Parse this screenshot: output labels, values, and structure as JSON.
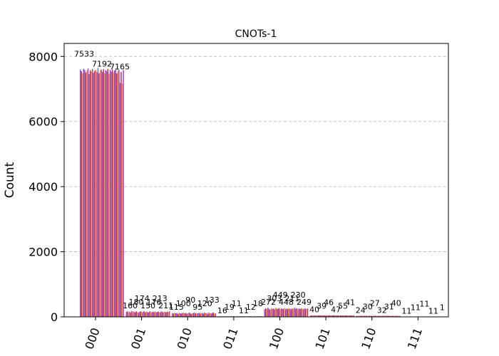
{
  "chart_data": {
    "type": "bar",
    "title": "CNOTs-1",
    "xlabel": "",
    "ylabel": "Count",
    "ylim": [
      0,
      8400
    ],
    "yticks": [
      0,
      2000,
      4000,
      6000,
      8000
    ],
    "grid": true,
    "categories": [
      "000",
      "001",
      "010",
      "011",
      "100",
      "101",
      "110",
      "111"
    ],
    "series_colors": [
      "#6a5acd",
      "#dc143c",
      "#ff8c00",
      "#9932cc"
    ],
    "series_count": 40,
    "group_values": [
      [
        7600,
        7550,
        7480,
        7620,
        7590,
        7510,
        7570,
        7630,
        7460,
        7580,
        7540,
        7610,
        7500,
        7560,
        7590,
        7520,
        7650,
        7480,
        7570,
        7600,
        7530,
        7610,
        7490,
        7580,
        7550,
        7620,
        7470,
        7590,
        7540,
        7600,
        7510,
        7570,
        7630,
        7480,
        7560,
        7590,
        7192,
        7520,
        7165,
        7580
      ],
      [
        150,
        170,
        140,
        160,
        130,
        180,
        150,
        160,
        140,
        170,
        150,
        130,
        160,
        170,
        140,
        150,
        180,
        140,
        160,
        150,
        130,
        170,
        150,
        140,
        160,
        150,
        170,
        140,
        150,
        160,
        130,
        150,
        170,
        140,
        160,
        150,
        140,
        160,
        150,
        170
      ],
      [
        120,
        100,
        130,
        110,
        120,
        90,
        130,
        110,
        100,
        120,
        130,
        110,
        120,
        100,
        110,
        130,
        120,
        90,
        110,
        120,
        130,
        100,
        120,
        110,
        130,
        100,
        110,
        120,
        100,
        130,
        110,
        120,
        90,
        130,
        110,
        100,
        120,
        130,
        110,
        100
      ],
      [
        15,
        20,
        12,
        18,
        14,
        16,
        20,
        12,
        18,
        15,
        14,
        19,
        13,
        17,
        20,
        15,
        12,
        18,
        16,
        14,
        20,
        13,
        17,
        15,
        19,
        12,
        16,
        18,
        14,
        20,
        15,
        13,
        17,
        19,
        12,
        16,
        18,
        14,
        15,
        20
      ],
      [
        230,
        260,
        240,
        280,
        250,
        220,
        270,
        240,
        260,
        230,
        280,
        250,
        240,
        270,
        230,
        260,
        250,
        240,
        280,
        230,
        260,
        240,
        270,
        250,
        230,
        260,
        240,
        280,
        250,
        270,
        220,
        260,
        240,
        250,
        270,
        230,
        260,
        250,
        240,
        260
      ],
      [
        45,
        40,
        50,
        42,
        48,
        38,
        46,
        44,
        40,
        50,
        42,
        47,
        39,
        45,
        48,
        41,
        44,
        50,
        43,
        40,
        46,
        48,
        42,
        45,
        40,
        49,
        43,
        46,
        41,
        44,
        48,
        42,
        45,
        40,
        47,
        43,
        46,
        41,
        44,
        48
      ],
      [
        30,
        28,
        35,
        25,
        32,
        30,
        27,
        34,
        29,
        31,
        26,
        33,
        30,
        28,
        35,
        27,
        32,
        29,
        31,
        26,
        34,
        30,
        28,
        33,
        27,
        31,
        29,
        35,
        26,
        32,
        30,
        28,
        34,
        27,
        31,
        29,
        33,
        26,
        30,
        32
      ],
      [
        5,
        8,
        3,
        10,
        6,
        4,
        9,
        7,
        5,
        11,
        4,
        8,
        6,
        3,
        10,
        5,
        7,
        9,
        4,
        6,
        8,
        5,
        11,
        3,
        7,
        6,
        9,
        4,
        10,
        5,
        8,
        6,
        3,
        7,
        9,
        11,
        4,
        6,
        11,
        8
      ]
    ],
    "labels_000": [
      "7533",
      "7192",
      "7165"
    ],
    "labels_001": [
      "160",
      "180",
      "174",
      "150",
      "176",
      "213",
      "211"
    ],
    "labels_010": [
      "115",
      "100",
      "90",
      "95",
      "120",
      "133"
    ],
    "labels_011": [
      "16",
      "19",
      "11",
      "11",
      "12",
      "18"
    ],
    "labels_100": [
      "272",
      "303",
      "449",
      "448",
      "211",
      "230",
      "249"
    ],
    "labels_101": [
      "40",
      "39",
      "46",
      "47",
      "55",
      "41"
    ],
    "labels_110": [
      "24",
      "30",
      "27",
      "32",
      "31",
      "40"
    ],
    "labels_111": [
      "11",
      "11",
      "11",
      "11",
      "1"
    ]
  }
}
